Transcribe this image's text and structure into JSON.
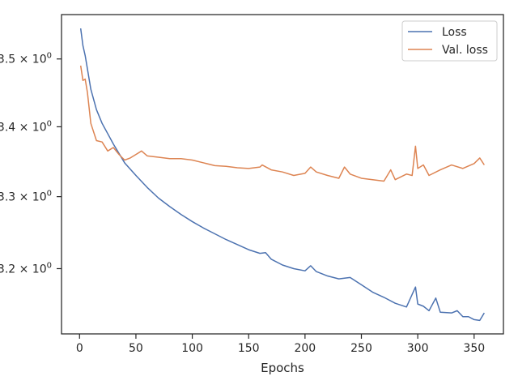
{
  "chart_data": {
    "type": "line",
    "title": "",
    "xlabel": "Epochs",
    "ylabel": "",
    "yscale": "log",
    "xlim": [
      -16,
      376
    ],
    "ylim": [
      3.112,
      3.567
    ],
    "grid": false,
    "legend_position": "top-right",
    "x_ticks": [
      {
        "value": 0,
        "label": "0"
      },
      {
        "value": 50,
        "label": "50"
      },
      {
        "value": 100,
        "label": "100"
      },
      {
        "value": 150,
        "label": "150"
      },
      {
        "value": 200,
        "label": "200"
      },
      {
        "value": 250,
        "label": "250"
      },
      {
        "value": 300,
        "label": "300"
      },
      {
        "value": 350,
        "label": "350"
      }
    ],
    "y_ticks": [
      {
        "value": 3.2,
        "base": "3.2",
        "exp": "0"
      },
      {
        "value": 3.3,
        "base": "3.3",
        "exp": "0"
      },
      {
        "value": 3.4,
        "base": "3.4",
        "exp": "0"
      },
      {
        "value": 3.5,
        "base": "3.5",
        "exp": "0"
      }
    ],
    "series": [
      {
        "name": "Loss",
        "color": "#4c72b0",
        "x": [
          1,
          3,
          5,
          7,
          10,
          15,
          20,
          25,
          30,
          40,
          50,
          60,
          70,
          80,
          90,
          100,
          110,
          120,
          130,
          140,
          150,
          160,
          165,
          170,
          180,
          190,
          200,
          205,
          210,
          220,
          230,
          240,
          250,
          260,
          270,
          280,
          290,
          298,
          300,
          305,
          310,
          316,
          320,
          330,
          335,
          340,
          345,
          350,
          355,
          359
        ],
        "y": [
          3.546,
          3.52,
          3.505,
          3.485,
          3.455,
          3.425,
          3.405,
          3.39,
          3.375,
          3.348,
          3.33,
          3.313,
          3.298,
          3.286,
          3.275,
          3.265,
          3.256,
          3.248,
          3.24,
          3.233,
          3.226,
          3.221,
          3.222,
          3.213,
          3.205,
          3.2,
          3.197,
          3.204,
          3.196,
          3.19,
          3.186,
          3.188,
          3.178,
          3.168,
          3.161,
          3.153,
          3.148,
          3.175,
          3.152,
          3.149,
          3.143,
          3.16,
          3.141,
          3.14,
          3.143,
          3.135,
          3.135,
          3.131,
          3.13,
          3.14
        ]
      },
      {
        "name": "Val. loss",
        "color": "#dd8452",
        "x": [
          1,
          3,
          5,
          7,
          10,
          15,
          20,
          25,
          30,
          35,
          40,
          45,
          50,
          55,
          60,
          70,
          80,
          90,
          100,
          110,
          120,
          130,
          140,
          150,
          160,
          162,
          170,
          180,
          190,
          200,
          205,
          210,
          220,
          230,
          235,
          240,
          250,
          260,
          270,
          276,
          280,
          290,
          295,
          298,
          300,
          305,
          310,
          320,
          330,
          340,
          350,
          355,
          359
        ],
        "y": [
          3.49,
          3.468,
          3.47,
          3.45,
          3.405,
          3.38,
          3.378,
          3.365,
          3.37,
          3.36,
          3.352,
          3.355,
          3.36,
          3.365,
          3.358,
          3.356,
          3.354,
          3.354,
          3.352,
          3.348,
          3.344,
          3.343,
          3.341,
          3.34,
          3.342,
          3.345,
          3.338,
          3.335,
          3.33,
          3.333,
          3.342,
          3.335,
          3.33,
          3.326,
          3.342,
          3.332,
          3.326,
          3.324,
          3.322,
          3.338,
          3.324,
          3.332,
          3.33,
          3.372,
          3.34,
          3.345,
          3.33,
          3.338,
          3.345,
          3.34,
          3.347,
          3.355,
          3.345
        ]
      }
    ]
  }
}
